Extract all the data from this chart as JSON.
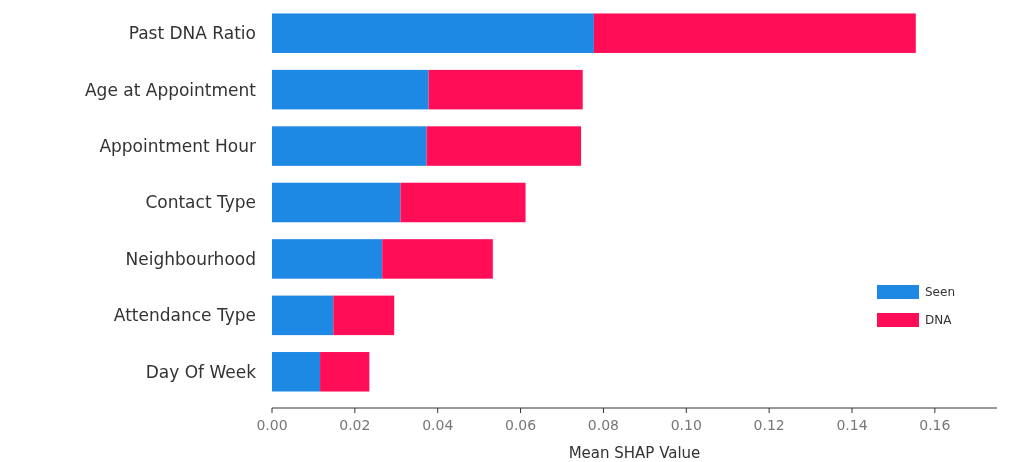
{
  "chart_data": {
    "type": "bar",
    "orientation": "horizontal",
    "stacked": true,
    "xlabel": "Mean SHAP Value",
    "categories": [
      "Past DNA Ratio",
      "Age at Appointment",
      "Appointment Hour",
      "Contact Type",
      "Neighbourhood",
      "Attendance Type",
      "Day Of Week"
    ],
    "series": [
      {
        "name": "Seen",
        "color": "#1e88e5",
        "values": [
          0.0777,
          0.0378,
          0.0373,
          0.031,
          0.0266,
          0.0148,
          0.0116
        ]
      },
      {
        "name": "DNA",
        "color": "#ff0d57",
        "values": [
          0.0777,
          0.0372,
          0.0373,
          0.0302,
          0.0267,
          0.0147,
          0.0119
        ]
      }
    ],
    "xlim": [
      0,
      0.175
    ],
    "xticks": [
      {
        "value": 0,
        "label": "0.00"
      },
      {
        "value": 0.02,
        "label": "0.02"
      },
      {
        "value": 0.04,
        "label": "0.04"
      },
      {
        "value": 0.06,
        "label": "0.06"
      },
      {
        "value": 0.08,
        "label": "0.08"
      },
      {
        "value": 0.1,
        "label": "0.10"
      },
      {
        "value": 0.12,
        "label": "0.12"
      },
      {
        "value": 0.14,
        "label": "0.14"
      },
      {
        "value": 0.16,
        "label": "0.16"
      }
    ],
    "legend": "bottom right"
  }
}
